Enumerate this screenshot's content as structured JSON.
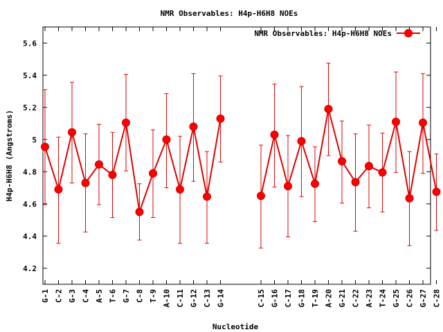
{
  "chart_data": {
    "type": "line",
    "title": "NMR Observables: H4p-H6H8 NOEs",
    "xlabel": "Nucleotide",
    "ylabel": "H4p-H6H8 (Angstroms)",
    "ylim": [
      4.1,
      5.7
    ],
    "yticks": [
      "4.2",
      "4.4",
      "4.6",
      "4.8",
      "5",
      "5.2",
      "5.4",
      "5.6"
    ],
    "grid": false,
    "legend_position": "top-right",
    "series": [
      {
        "name": "NMR Observables: H4p-H6H8 NOEs",
        "color": "#e00000",
        "segments": [
          {
            "categories": [
              "G-1",
              "C-2",
              "G-3",
              "C-4",
              "A-5",
              "T-6",
              "G-7",
              "C-8",
              "T-9",
              "A-10",
              "C-11",
              "G-12",
              "C-13",
              "G-14"
            ],
            "values": [
              4.955,
              4.69,
              5.045,
              4.73,
              4.845,
              4.78,
              5.105,
              4.55,
              4.79,
              5.0,
              4.69,
              5.08,
              4.645,
              5.13
            ],
            "err_low": [
              4.595,
              4.355,
              4.73,
              4.425,
              4.595,
              4.515,
              4.805,
              4.375,
              4.515,
              4.7,
              4.355,
              4.74,
              4.355,
              4.86
            ],
            "err_high": [
              5.31,
              5.015,
              5.355,
              5.035,
              5.095,
              5.045,
              5.405,
              4.725,
              5.06,
              5.285,
              5.02,
              5.41,
              4.925,
              5.395
            ]
          },
          {
            "categories": [
              "C-15",
              "G-16",
              "C-17",
              "G-18",
              "T-19",
              "A-20",
              "G-21",
              "C-22",
              "A-23",
              "T-24",
              "G-25",
              "C-26",
              "G-27",
              "C-28"
            ],
            "values": [
              4.65,
              5.03,
              4.71,
              4.99,
              4.725,
              5.19,
              4.865,
              4.735,
              4.835,
              4.795,
              5.11,
              4.635,
              5.105,
              4.675
            ],
            "err_low": [
              4.325,
              4.705,
              4.395,
              4.645,
              4.49,
              4.9,
              4.605,
              4.43,
              4.575,
              4.55,
              4.795,
              4.34,
              4.79,
              4.435
            ],
            "err_high": [
              4.965,
              5.345,
              5.025,
              5.33,
              4.955,
              5.475,
              5.115,
              5.035,
              5.09,
              5.04,
              5.42,
              4.925,
              5.41,
              4.91
            ]
          }
        ]
      }
    ]
  }
}
